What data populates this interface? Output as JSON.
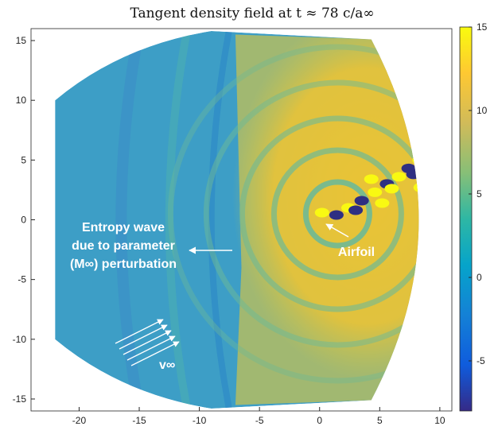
{
  "chart_data": {
    "type": "heatmap",
    "title": "Tangent density field at t ≈ 78 c/a∞",
    "xlabel": "",
    "ylabel": "",
    "xlim": [
      -24,
      11
    ],
    "ylim": [
      -16,
      16
    ],
    "x_ticks": [
      -20,
      -15,
      -10,
      -5,
      0,
      5,
      10
    ],
    "y_ticks": [
      15,
      10,
      5,
      0,
      -5,
      -10,
      -15
    ],
    "colorbar": {
      "range": [
        -8,
        15
      ],
      "ticks": [
        15,
        10,
        5,
        0,
        -5
      ],
      "colormap": "parula"
    },
    "domain_shape": "annular sector",
    "annotations": [
      {
        "lines": [
          "Entropy wave",
          "due to parameter",
          "(M∞) perturbation"
        ],
        "arrow_to": [
          -7,
          -2.6
        ]
      },
      {
        "text": "Airfoil",
        "arrow_from": [
          0.6,
          -0.3
        ]
      },
      {
        "text": "v∞"
      }
    ],
    "colors": {
      "background_field": "#3d9ec6",
      "high": "#f4ce2c",
      "low": "#3a3a9b",
      "peak": "#f9f912",
      "trough": "#2f2f82"
    }
  }
}
